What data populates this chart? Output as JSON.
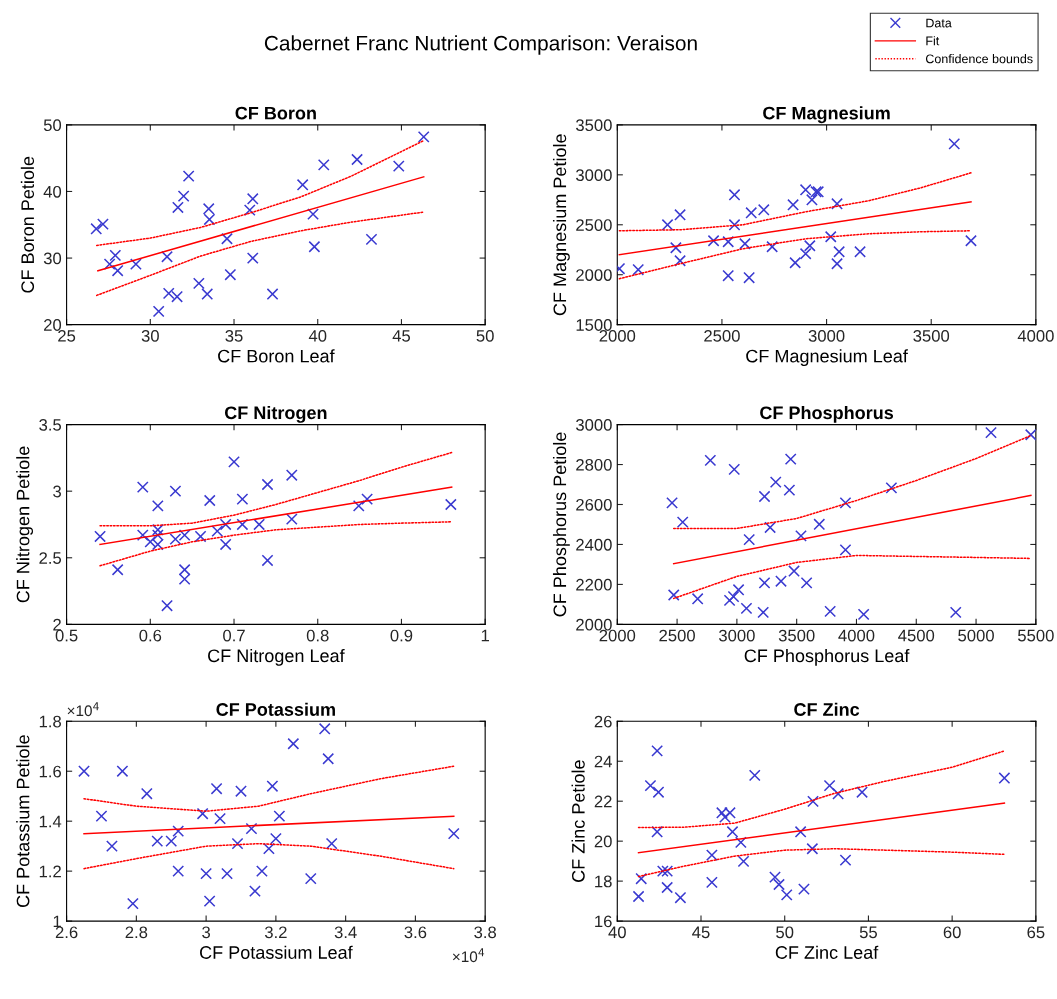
{
  "chart_data": [
    {
      "type": "other",
      "title": "Cabernet Franc Nutrient Comparison: Veraison",
      "legend": "top right",
      "series": [
        {
          "type": "scatter",
          "name": "Data",
          "color": "#3a3ad0",
          "marker": "cross"
        },
        {
          "type": "line",
          "name": "Fit",
          "color": "#ff0000",
          "line_style": "solid"
        },
        {
          "type": "line",
          "name": "Confidence bounds",
          "color": "#ff0000",
          "line_style": "dotted"
        }
      ]
    },
    {
      "type": "scatter",
      "title": "CF Boron",
      "xlabel": "CF Boron Leaf",
      "ylabel": "CF Boron Petiole",
      "xlim": [
        25,
        50
      ],
      "ylim": [
        20,
        50
      ],
      "xticks": [
        25,
        30,
        35,
        40,
        45,
        50
      ],
      "yticks": [
        20,
        30,
        40,
        50
      ],
      "series": [
        {
          "type": "scatter",
          "color": "#3a3ad0",
          "marker": "cross",
          "x": [
            26.77,
            27.17,
            27.57,
            27.91,
            28.05,
            29.14,
            30.5,
            31.0,
            31.1,
            31.6,
            31.65,
            31.99,
            32.29,
            32.9,
            33.4,
            33.49,
            33.53,
            34.58,
            34.78,
            35.94,
            36.12,
            36.12,
            37.3,
            39.1,
            39.72,
            39.8,
            40.36,
            42.35,
            43.21,
            44.84,
            46.33
          ],
          "values": [
            34.4,
            35.1,
            29.1,
            30.4,
            28.1,
            29.1,
            22.0,
            30.2,
            24.7,
            24.2,
            37.6,
            39.3,
            42.3,
            26.2,
            24.6,
            37.4,
            35.8,
            32.9,
            27.5,
            37.2,
            38.9,
            30.0,
            24.6,
            41.0,
            36.6,
            31.7,
            44.0,
            44.8,
            32.8,
            43.8,
            48.2
          ]
        },
        {
          "type": "line",
          "color": "#ff0000",
          "x": [
            26.87,
            46.33
          ],
          "values": [
            28.1,
            42.2
          ]
        },
        {
          "type": "line",
          "color": "#ff0000",
          "line_style": "dotted",
          "x": [
            26.8,
            30,
            33,
            36,
            39,
            42,
            46.3
          ],
          "values": [
            31.9,
            33.0,
            34.6,
            36.8,
            39.2,
            42.3,
            47.6
          ]
        },
        {
          "type": "line",
          "color": "#ff0000",
          "line_style": "dotted",
          "x": [
            26.8,
            30,
            33,
            36,
            39,
            42,
            46.3
          ],
          "values": [
            24.4,
            27.4,
            30.3,
            32.5,
            34.1,
            35.4,
            36.9
          ]
        }
      ]
    },
    {
      "type": "scatter",
      "title": "CF Magnesium",
      "xlabel": "CF Magnesium Leaf",
      "ylabel": "CF Magnesium Petiole",
      "xlim": [
        2000,
        4000
      ],
      "ylim": [
        1500,
        3500
      ],
      "xticks": [
        2000,
        2500,
        3000,
        3500,
        4000
      ],
      "yticks": [
        1500,
        2000,
        2500,
        3000,
        3500
      ],
      "series": [
        {
          "type": "scatter",
          "color": "#3a3ad0",
          "marker": "cross",
          "x": [
            2010,
            2100,
            2240,
            2280,
            2300,
            2300,
            2460,
            2530,
            2530,
            2560,
            2560,
            2610,
            2630,
            2640,
            2700,
            2740,
            2840,
            2850,
            2900,
            2900,
            2920,
            2930,
            2950,
            2960,
            3020,
            3050,
            3050,
            3060,
            3160,
            3610,
            3690
          ],
          "values": [
            2060,
            2050,
            2500,
            2270,
            2140,
            2600,
            2340,
            2330,
            1990,
            2800,
            2500,
            2310,
            1970,
            2620,
            2650,
            2280,
            2700,
            2120,
            2850,
            2210,
            2290,
            2750,
            2830,
            2830,
            2380,
            2710,
            2110,
            2230,
            2230,
            3310,
            2340
          ]
        },
        {
          "type": "line",
          "color": "#ff0000",
          "x": [
            2010,
            3690
          ],
          "values": [
            2200,
            2730
          ]
        },
        {
          "type": "line",
          "color": "#ff0000",
          "line_style": "dotted",
          "x": [
            2010,
            2300,
            2600,
            2900,
            3200,
            3450,
            3690
          ],
          "values": [
            2440,
            2450,
            2500,
            2630,
            2740,
            2870,
            3020
          ]
        },
        {
          "type": "line",
          "color": "#ff0000",
          "line_style": "dotted",
          "x": [
            2010,
            2300,
            2600,
            2900,
            3200,
            3450,
            3690
          ],
          "values": [
            1960,
            2110,
            2260,
            2360,
            2410,
            2430,
            2440
          ]
        }
      ]
    },
    {
      "type": "scatter",
      "title": "CF Nitrogen",
      "xlabel": "CF Nitrogen Leaf",
      "ylabel": "CF Nitrogen Petiole",
      "xlim": [
        0.5,
        1
      ],
      "ylim": [
        2,
        3.5
      ],
      "xticks": [
        0.5,
        0.6,
        0.7,
        0.8,
        0.9,
        1
      ],
      "yticks": [
        2,
        2.5,
        3,
        3.5
      ],
      "series": [
        {
          "type": "scatter",
          "color": "#3a3ad0",
          "marker": "cross",
          "x": [
            0.54,
            0.561,
            0.591,
            0.591,
            0.6,
            0.609,
            0.609,
            0.609,
            0.609,
            0.62,
            0.63,
            0.63,
            0.641,
            0.641,
            0.641,
            0.66,
            0.671,
            0.68,
            0.69,
            0.69,
            0.7,
            0.71,
            0.71,
            0.73,
            0.74,
            0.74,
            0.769,
            0.769,
            0.849,
            0.859,
            0.959
          ],
          "values": [
            2.66,
            2.41,
            3.03,
            2.67,
            2.62,
            2.89,
            2.71,
            2.67,
            2.6,
            2.14,
            3.0,
            2.64,
            2.67,
            2.41,
            2.34,
            2.66,
            2.93,
            2.7,
            2.75,
            2.6,
            3.22,
            2.94,
            2.75,
            2.75,
            3.05,
            2.48,
            3.12,
            2.79,
            2.89,
            2.94,
            2.9
          ]
        },
        {
          "type": "line",
          "color": "#ff0000",
          "x": [
            0.54,
            0.96
          ],
          "values": [
            2.6,
            3.03
          ]
        },
        {
          "type": "line",
          "color": "#ff0000",
          "line_style": "dotted",
          "x": [
            0.54,
            0.6,
            0.65,
            0.7,
            0.75,
            0.8,
            0.85,
            0.9,
            0.96
          ],
          "values": [
            2.74,
            2.74,
            2.76,
            2.82,
            2.9,
            2.99,
            3.08,
            3.18,
            3.29
          ]
        },
        {
          "type": "line",
          "color": "#ff0000",
          "line_style": "dotted",
          "x": [
            0.54,
            0.6,
            0.65,
            0.7,
            0.75,
            0.8,
            0.85,
            0.9,
            0.96
          ],
          "values": [
            2.44,
            2.55,
            2.62,
            2.67,
            2.71,
            2.73,
            2.75,
            2.76,
            2.77
          ]
        }
      ]
    },
    {
      "type": "scatter",
      "title": "CF Phosphorus",
      "xlabel": "CF Phosphorus Leaf",
      "ylabel": "CF Phosphorus Petiole",
      "xlim": [
        2000,
        5500
      ],
      "ylim": [
        2000,
        3000
      ],
      "xticks": [
        2000,
        2500,
        3000,
        3500,
        4000,
        4500,
        5000,
        5500
      ],
      "yticks": [
        2000,
        2200,
        2400,
        2600,
        2800,
        3000
      ],
      "series": [
        {
          "type": "scatter",
          "color": "#3a3ad0",
          "marker": "cross",
          "x": [
            2458,
            2472,
            2547,
            2672,
            2778,
            2939,
            2972,
            2978,
            3014,
            3080,
            3103,
            3220,
            3231,
            3231,
            3278,
            3325,
            3369,
            3439,
            3450,
            3478,
            3536,
            3583,
            3689,
            3780,
            3908,
            3908,
            4060,
            4292,
            4830,
            5125,
            5458
          ],
          "values": [
            2608,
            2147,
            2512,
            2128,
            2821,
            2120,
            2139,
            2776,
            2173,
            2080,
            2424,
            2060,
            2640,
            2208,
            2485,
            2712,
            2216,
            2672,
            2827,
            2267,
            2443,
            2208,
            2501,
            2065,
            2608,
            2373,
            2050,
            2683,
            2060,
            2960,
            2949
          ]
        },
        {
          "type": "line",
          "color": "#ff0000",
          "x": [
            2472,
            5458
          ],
          "values": [
            2304,
            2645
          ]
        },
        {
          "type": "line",
          "color": "#ff0000",
          "line_style": "dotted",
          "x": [
            2472,
            3000,
            3500,
            4000,
            4500,
            5000,
            5458
          ],
          "values": [
            2480,
            2480,
            2530,
            2620,
            2720,
            2830,
            2945
          ]
        },
        {
          "type": "line",
          "color": "#ff0000",
          "line_style": "dotted",
          "x": [
            2472,
            3000,
            3500,
            4000,
            4500,
            5000,
            5458
          ],
          "values": [
            2130,
            2240,
            2310,
            2345,
            2340,
            2335,
            2330
          ]
        }
      ]
    },
    {
      "type": "scatter",
      "title": "CF Potassium",
      "xlabel": "CF Potassium Leaf",
      "ylabel": "CF Potassium Petiole",
      "annotations": [
        "×10$^{4}$",
        "×10$^{4}$"
      ],
      "xlim": [
        2.6,
        3.8
      ],
      "ylim": [
        1,
        1.8
      ],
      "xticks": [
        2.6,
        2.8,
        3,
        3.2,
        3.4,
        3.6,
        3.8
      ],
      "yticks": [
        1,
        1.2,
        1.4,
        1.6,
        1.8
      ],
      "series": [
        {
          "type": "scatter",
          "color": "#3a3ad0",
          "marker": "cross",
          "x": [
            2.65,
            2.7,
            2.73,
            2.76,
            2.79,
            2.83,
            2.86,
            2.9,
            2.92,
            2.92,
            2.99,
            3.0,
            3.01,
            3.03,
            3.04,
            3.06,
            3.09,
            3.1,
            3.13,
            3.14,
            3.16,
            3.18,
            3.19,
            3.2,
            3.21,
            3.25,
            3.3,
            3.34,
            3.35,
            3.36,
            3.71
          ],
          "values": [
            1.6,
            1.42,
            1.3,
            1.6,
            1.07,
            1.51,
            1.32,
            1.32,
            1.36,
            1.2,
            1.43,
            1.19,
            1.08,
            1.53,
            1.41,
            1.19,
            1.31,
            1.52,
            1.37,
            1.12,
            1.2,
            1.29,
            1.54,
            1.33,
            1.42,
            1.71,
            1.17,
            1.77,
            1.65,
            1.31,
            1.35
          ]
        },
        {
          "type": "line",
          "color": "#ff0000",
          "x": [
            2.65,
            3.71
          ],
          "values": [
            1.35,
            1.42
          ]
        },
        {
          "type": "line",
          "color": "#ff0000",
          "line_style": "dotted",
          "x": [
            2.65,
            2.8,
            3.0,
            3.15,
            3.3,
            3.5,
            3.71
          ],
          "values": [
            1.49,
            1.46,
            1.44,
            1.46,
            1.51,
            1.57,
            1.62
          ]
        },
        {
          "type": "line",
          "color": "#ff0000",
          "line_style": "dotted",
          "x": [
            2.65,
            2.8,
            3.0,
            3.15,
            3.3,
            3.5,
            3.71
          ],
          "values": [
            1.21,
            1.25,
            1.3,
            1.31,
            1.3,
            1.26,
            1.21
          ]
        }
      ]
    },
    {
      "type": "scatter",
      "title": "CF Zinc",
      "xlabel": "CF Zinc Leaf",
      "ylabel": "CF Zinc Petiole",
      "xlim": [
        40,
        65
      ],
      "ylim": [
        16,
        26
      ],
      "xticks": [
        40,
        45,
        50,
        55,
        60,
        65
      ],
      "yticks": [
        16,
        18,
        20,
        22,
        24,
        26
      ],
      "series": [
        {
          "type": "scatter",
          "color": "#3a3ad0",
          "marker": "cross",
          "x": [
            41.27,
            41.43,
            41.98,
            42.38,
            42.38,
            42.46,
            42.72,
            42.98,
            42.98,
            43.77,
            45.65,
            45.65,
            46.25,
            46.43,
            46.73,
            46.88,
            47.38,
            47.54,
            48.21,
            49.42,
            49.66,
            50.12,
            50.95,
            51.15,
            51.65,
            51.69,
            52.68,
            53.19,
            53.63,
            54.62,
            63.12
          ],
          "values": [
            17.23,
            18.12,
            22.78,
            24.52,
            20.47,
            22.45,
            18.5,
            18.5,
            17.68,
            17.17,
            17.94,
            19.3,
            21.42,
            21.2,
            21.42,
            20.47,
            19.94,
            18.99,
            23.29,
            18.2,
            17.83,
            17.31,
            20.47,
            17.6,
            19.62,
            21.99,
            22.78,
            22.37,
            19.05,
            22.45,
            23.16
          ]
        },
        {
          "type": "line",
          "color": "#ff0000",
          "x": [
            41.27,
            63.12
          ],
          "values": [
            19.42,
            21.91
          ]
        },
        {
          "type": "line",
          "color": "#ff0000",
          "line_style": "dotted",
          "x": [
            41.27,
            44,
            47,
            50,
            53,
            56,
            60,
            63.12
          ],
          "values": [
            20.68,
            20.7,
            20.9,
            21.6,
            22.4,
            23.0,
            23.7,
            24.52
          ]
        },
        {
          "type": "line",
          "color": "#ff0000",
          "line_style": "dotted",
          "x": [
            41.27,
            44,
            47,
            50,
            53,
            56,
            60,
            63.12
          ],
          "values": [
            18.23,
            18.75,
            19.25,
            19.55,
            19.62,
            19.55,
            19.45,
            19.34
          ]
        }
      ]
    }
  ]
}
